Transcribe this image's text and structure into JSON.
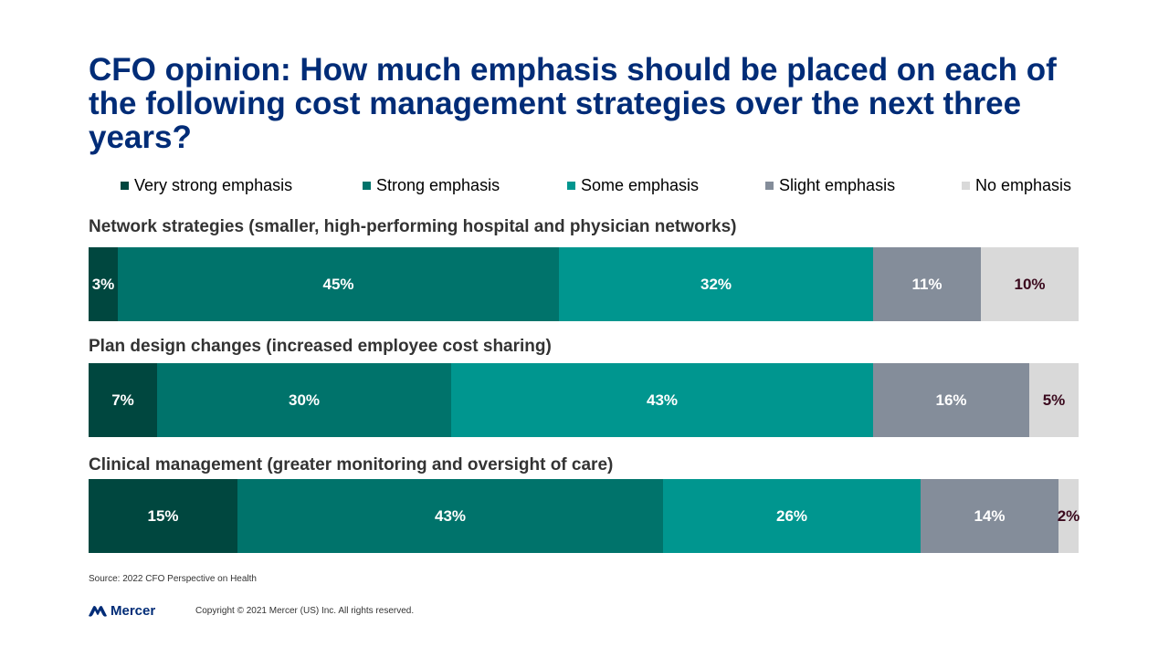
{
  "title": "CFO opinion: How much emphasis should be placed on each of the following cost management strategies over the next three years?",
  "legend": [
    {
      "label": "Very strong emphasis",
      "color": "#00473f"
    },
    {
      "label": "Strong emphasis",
      "color": "#00736b"
    },
    {
      "label": "Some emphasis",
      "color": "#00968f"
    },
    {
      "label": "Slight emphasis",
      "color": "#848d9a"
    },
    {
      "label": "No emphasis",
      "color": "#d9d9d9"
    }
  ],
  "chart_data": {
    "type": "bar",
    "stacked": true,
    "orientation": "horizontal",
    "categories": [
      "Network  strategies (smaller, high-performing hospital and physician networks)",
      "Plan design changes (increased employee cost sharing)",
      "Clinical  management (greater monitoring and oversight of care)"
    ],
    "series": [
      {
        "name": "Very strong emphasis",
        "values": [
          3,
          7,
          15
        ],
        "labels": [
          "3%",
          "7%",
          "15%"
        ],
        "color": "#00473f"
      },
      {
        "name": "Strong emphasis",
        "values": [
          45,
          30,
          43
        ],
        "labels": [
          "45%",
          "30%",
          "43%"
        ],
        "color": "#00736b"
      },
      {
        "name": "Some emphasis",
        "values": [
          32,
          43,
          26
        ],
        "labels": [
          "32%",
          "43%",
          "26%"
        ],
        "color": "#00968f"
      },
      {
        "name": "Slight emphasis",
        "values": [
          11,
          16,
          14
        ],
        "labels": [
          "11%",
          "16%",
          "14%"
        ],
        "color": "#848d9a"
      },
      {
        "name": "No emphasis",
        "values": [
          10,
          5,
          2
        ],
        "labels": [
          "10%",
          "5%",
          "2%"
        ],
        "color": "#d9d9d9"
      }
    ],
    "legend_position": "top",
    "grid": false
  },
  "footer": {
    "source": "Source: 2022 CFO Perspective on Health",
    "logo_text": "Mercer",
    "copyright": "Copyright © 2021 Mercer (US) Inc. All rights reserved."
  }
}
